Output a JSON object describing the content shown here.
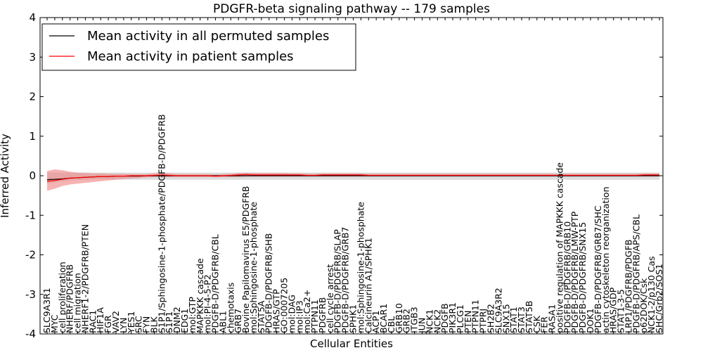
{
  "chart_data": {
    "type": "line",
    "title": "PDGFR-beta signaling pathway -- 179 samples",
    "xlabel": "Cellular Entities",
    "ylabel": "Inferred Activity",
    "ylim": [
      -4,
      4
    ],
    "yticks": [
      -4,
      -3,
      -2,
      -1,
      0,
      1,
      2,
      3,
      4
    ],
    "grid": false,
    "legend_position": "top-left",
    "categories": [
      "SLC9A3R1",
      "MYC",
      "cell proliferation",
      "NHERF/PDGFRB",
      "cell migration",
      "NHERF1-2/PDGFRB/PTEN",
      "RAC1",
      "HIF1A",
      "FGR",
      "VAV2",
      "LYN",
      "YES1",
      "SRC",
      "FYN",
      "BLK",
      "S1P1/Sphingosine-1-phosphate/PDGFB-D/PDGFRB",
      "S1P1",
      "DNM2",
      "EDG1",
      "mol:GTP",
      "MAPKKK cascade",
      "mol:PI-4-5-P2",
      "PDGFB-D/PDGFRB/CBL",
      "ABL1",
      "chemotaxis",
      "GRB7",
      "Bovine Papilomavirus E5/PDGFRB",
      "mol:Sphingosine-1-phosphate",
      "STAT5A",
      "PDGFB-D/PDGFRB/SHB",
      "HRAS/GTP",
      "GO:0007205",
      "mol:DAG",
      "mol:IP3",
      "mol:Ca2+",
      "PTPN11",
      "PDGFRB",
      "cell cycle arrest",
      "PDGFB-D/PDGFRB/SLAP",
      "PDGFB-D/PDGFRB/GRB7",
      "SPHK1",
      "mol:Sphingosine-1-phosphate",
      "Calcineurin A1/SPHK1",
      "ACP1",
      "BCAR1",
      "CBL",
      "GRB10",
      "GRB2",
      "ITGB3",
      "JUN",
      "NCK1",
      "NCK2",
      "PDGFB",
      "PIK3R1",
      "PLCG1",
      "PTEN",
      "PTPN11",
      "PTPRJ",
      "SH2B2",
      "SLC9A3R2",
      "SNX15",
      "STAT1",
      "STAT3",
      "STAT5B",
      "CSK",
      "FER",
      "RASA1",
      "positive regulation of MAPKKK cascade",
      "PDGFB-D/PDGFRB/GRB10",
      "PDGFB-D/PDGFRB/LMW-PTP",
      "PDGFB-D/PDGFRB/SNX15",
      "DOK1",
      "PDGFB-D/PDGFRB/GRB7/SHC",
      "actin cytoskeleton reorganization",
      "HRAS/GDP",
      "STAT1-3-5",
      "LRP1/PDGFRB/PDGFB",
      "PDGFB-D/PDGFRB/APS/CBL",
      "p62DOK/Csk",
      "NCK1-2/p130 Cas",
      "SHC/Grb2/SOS1"
    ],
    "series": [
      {
        "name": "Mean activity in all permuted samples",
        "color": "#000000",
        "band_color": "#c0c0c0",
        "values": [
          -0.1,
          -0.09,
          -0.08,
          -0.06,
          -0.05,
          -0.04,
          -0.03,
          -0.02,
          -0.02,
          -0.01,
          -0.01,
          -0.01,
          -0.01,
          0,
          0,
          0,
          0,
          0,
          0,
          0,
          0,
          0,
          0,
          0,
          0,
          0,
          0,
          0,
          0,
          0,
          0,
          0,
          0,
          0,
          0,
          0,
          0,
          0,
          0,
          0,
          0,
          0,
          0,
          0,
          0,
          0,
          0,
          0,
          0,
          0,
          0,
          0,
          0,
          0,
          0,
          0,
          0,
          0,
          0,
          0,
          0,
          0,
          0,
          0,
          0,
          0,
          0,
          0,
          0,
          0,
          0,
          0,
          0,
          0,
          0,
          0,
          0,
          0,
          0,
          0,
          0
        ],
        "band_lower": [
          -0.2,
          -0.17,
          -0.14,
          -0.12,
          -0.11,
          -0.1,
          -0.09,
          -0.09,
          -0.09,
          -0.1,
          -0.1,
          -0.1,
          -0.1,
          -0.1,
          -0.1,
          -0.1,
          -0.1,
          -0.1,
          -0.1,
          -0.1,
          -0.1,
          -0.1,
          -0.1,
          -0.1,
          -0.1,
          -0.1,
          -0.1,
          -0.1,
          -0.1,
          -0.1,
          -0.1,
          -0.1,
          -0.1,
          -0.1,
          -0.1,
          -0.1,
          -0.1,
          -0.1,
          -0.1,
          -0.1,
          -0.1,
          -0.1,
          -0.1,
          -0.1,
          -0.1,
          -0.1,
          -0.1,
          -0.1,
          -0.1,
          -0.1,
          -0.1,
          -0.1,
          -0.1,
          -0.1,
          -0.1,
          -0.1,
          -0.1,
          -0.1,
          -0.1,
          -0.1,
          -0.1,
          -0.1,
          -0.1,
          -0.1,
          -0.1,
          -0.1,
          -0.1,
          -0.1,
          -0.1,
          -0.1,
          -0.1,
          -0.1,
          -0.1,
          -0.1,
          -0.1,
          -0.1,
          -0.1,
          -0.1,
          -0.1,
          -0.1,
          -0.1
        ],
        "band_upper": [
          0.08,
          0.08,
          0.08,
          0.08,
          0.08,
          0.08,
          0.08,
          0.08,
          0.08,
          0.08,
          0.08,
          0.08,
          0.08,
          0.08,
          0.08,
          0.08,
          0.08,
          0.08,
          0.08,
          0.08,
          0.08,
          0.08,
          0.08,
          0.08,
          0.08,
          0.08,
          0.08,
          0.08,
          0.08,
          0.08,
          0.08,
          0.08,
          0.08,
          0.08,
          0.08,
          0.08,
          0.08,
          0.08,
          0.08,
          0.08,
          0.08,
          0.08,
          0.08,
          0.08,
          0.08,
          0.08,
          0.08,
          0.08,
          0.08,
          0.08,
          0.08,
          0.08,
          0.08,
          0.08,
          0.08,
          0.08,
          0.08,
          0.08,
          0.08,
          0.08,
          0.08,
          0.08,
          0.08,
          0.08,
          0.08,
          0.08,
          0.08,
          0.08,
          0.08,
          0.08,
          0.08,
          0.08,
          0.08,
          0.08,
          0.08,
          0.08,
          0.08,
          0.08,
          0.08,
          0.08,
          0.08
        ]
      },
      {
        "name": "Mean activity in patient samples",
        "color": "#ff0000",
        "band_color": "#f08080",
        "values": [
          -0.14,
          -0.12,
          -0.09,
          -0.06,
          -0.05,
          -0.04,
          -0.03,
          -0.02,
          -0.02,
          -0.01,
          -0.01,
          0,
          0,
          0,
          0.01,
          0.02,
          0.01,
          0,
          0,
          0,
          0,
          0,
          -0.01,
          0,
          0.01,
          0.02,
          0.03,
          0.02,
          0.02,
          0.02,
          0.02,
          0.02,
          0.02,
          0.02,
          0.01,
          0.01,
          0.02,
          0.02,
          0.02,
          0.02,
          0.02,
          0.02,
          0.01,
          0.01,
          0.01,
          0.01,
          0.01,
          0.01,
          0.01,
          0.01,
          0.01,
          0.01,
          0.01,
          0.01,
          0.01,
          0.01,
          0.01,
          0.01,
          0.01,
          0.01,
          0.01,
          0.01,
          0.01,
          0.01,
          0.01,
          0.01,
          0.01,
          0.01,
          0.01,
          0.01,
          0.01,
          0.01,
          0.01,
          0.01,
          0.01,
          0.01,
          0.01,
          0.01,
          0.02,
          0.02,
          0.02
        ],
        "band_lower": [
          -0.38,
          -0.33,
          -0.26,
          -0.22,
          -0.2,
          -0.18,
          -0.16,
          -0.14,
          -0.12,
          -0.1,
          -0.08,
          -0.07,
          -0.06,
          -0.04,
          -0.03,
          -0.03,
          -0.03,
          -0.03,
          -0.03,
          -0.03,
          -0.03,
          -0.03,
          -0.04,
          -0.03,
          -0.03,
          -0.03,
          -0.02,
          -0.02,
          -0.02,
          -0.02,
          -0.02,
          -0.02,
          -0.02,
          -0.02,
          -0.02,
          -0.02,
          -0.02,
          -0.02,
          -0.02,
          -0.02,
          -0.02,
          -0.02,
          -0.02,
          -0.02,
          -0.02,
          -0.02,
          -0.02,
          -0.02,
          -0.02,
          -0.02,
          -0.02,
          -0.02,
          -0.02,
          -0.02,
          -0.02,
          -0.02,
          -0.02,
          -0.02,
          -0.02,
          -0.02,
          -0.02,
          -0.02,
          -0.02,
          -0.02,
          -0.02,
          -0.02,
          -0.02,
          -0.02,
          -0.02,
          -0.02,
          -0.02,
          -0.02,
          -0.02,
          -0.02,
          -0.02,
          -0.02,
          -0.02,
          -0.02,
          -0.02,
          -0.02,
          -0.02
        ],
        "band_upper": [
          0.12,
          0.16,
          0.14,
          0.1,
          0.08,
          0.07,
          0.06,
          0.06,
          0.05,
          0.05,
          0.05,
          0.04,
          0.04,
          0.04,
          0.06,
          0.07,
          0.06,
          0.04,
          0.04,
          0.04,
          0.04,
          0.04,
          0.03,
          0.04,
          0.05,
          0.07,
          0.08,
          0.07,
          0.07,
          0.07,
          0.07,
          0.07,
          0.06,
          0.06,
          0.05,
          0.05,
          0.06,
          0.06,
          0.06,
          0.06,
          0.06,
          0.06,
          0.05,
          0.05,
          0.05,
          0.05,
          0.05,
          0.05,
          0.05,
          0.05,
          0.05,
          0.05,
          0.05,
          0.05,
          0.05,
          0.05,
          0.05,
          0.05,
          0.05,
          0.05,
          0.05,
          0.05,
          0.05,
          0.05,
          0.05,
          0.05,
          0.05,
          0.05,
          0.05,
          0.05,
          0.05,
          0.05,
          0.05,
          0.05,
          0.05,
          0.05,
          0.05,
          0.05,
          0.06,
          0.06,
          0.06
        ]
      }
    ]
  }
}
